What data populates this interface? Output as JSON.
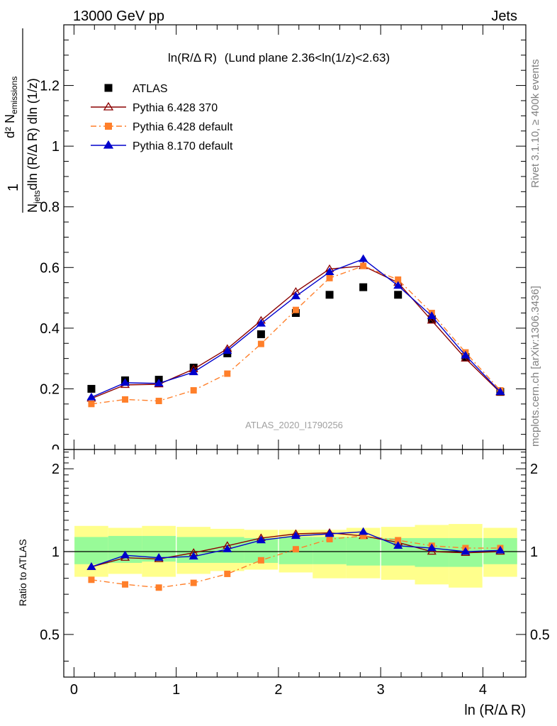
{
  "header": {
    "left": "13000 GeV pp",
    "right": "Jets",
    "side_rivet": "Rivet 3.1.10, ≥ 400k events",
    "side_mcplots": "mcplots.cern.ch [arXiv:1306.3436]",
    "watermark": "ATLAS_2020_I1790256"
  },
  "chart_data": {
    "type": "line",
    "title_main": "ln(R/Δ R)",
    "title_rest": "(Lund plane 2.36<ln(1/z)<2.63)",
    "ylabel_main": "1/N_jets dln (R/Δ R) dln (1/z) d² N_emissions",
    "ylabel_ratio": "Ratio to ATLAS",
    "xlabel": "ln (R/Δ R)",
    "x": [
      0.17,
      0.5,
      0.83,
      1.17,
      1.5,
      1.83,
      2.17,
      2.5,
      2.83,
      3.17,
      3.5,
      3.83,
      4.17
    ],
    "xlim": [
      -0.1,
      4.42
    ],
    "ylim_main": [
      0,
      1.4
    ],
    "ylim_ratio": [
      0.35,
      2.35
    ],
    "xticks": [
      "0",
      "1",
      "2",
      "3",
      "4"
    ],
    "yticks_main": [
      "0.2",
      "0.4",
      "0.6",
      "0.8",
      "1",
      "1.2"
    ],
    "yticks_main_cut": "0",
    "yticks_ratio": [
      "0.5",
      "1",
      "2"
    ],
    "legend_position": "top-left",
    "series": [
      {
        "name": "ATLAS",
        "color": "#000000",
        "marker": "square",
        "line": "none",
        "values": [
          0.2,
          0.228,
          0.23,
          0.27,
          0.317,
          0.38,
          0.45,
          0.51,
          0.535,
          0.51,
          0.43,
          0.305,
          0.19
        ]
      },
      {
        "name": "Pythia 6.428 370",
        "color": "#8b0000",
        "marker": "open-triangle",
        "line": "solid",
        "values": [
          0.168,
          0.213,
          0.215,
          0.265,
          0.332,
          0.425,
          0.52,
          0.595,
          0.605,
          0.55,
          0.425,
          0.3,
          0.188
        ],
        "ratio": [
          0.88,
          0.95,
          0.94,
          0.99,
          1.05,
          1.12,
          1.16,
          1.17,
          1.14,
          1.08,
          1.0,
          0.99,
          1.0
        ]
      },
      {
        "name": "Pythia 6.428 default",
        "color": "#ff7f2a",
        "marker": "square",
        "line": "dashdot",
        "values": [
          0.15,
          0.165,
          0.16,
          0.195,
          0.25,
          0.348,
          0.46,
          0.565,
          0.605,
          0.56,
          0.45,
          0.32,
          0.195
        ],
        "ratio": [
          0.79,
          0.76,
          0.74,
          0.77,
          0.83,
          0.93,
          1.02,
          1.11,
          1.14,
          1.1,
          1.05,
          1.03,
          1.03
        ]
      },
      {
        "name": "Pythia 8.170 default",
        "color": "#0000cc",
        "marker": "filled-triangle",
        "line": "solid",
        "values": [
          0.172,
          0.22,
          0.218,
          0.255,
          0.325,
          0.415,
          0.505,
          0.585,
          0.628,
          0.54,
          0.44,
          0.31,
          0.19
        ],
        "ratio": [
          0.88,
          0.97,
          0.95,
          0.96,
          1.02,
          1.1,
          1.14,
          1.16,
          1.18,
          1.05,
          1.03,
          1.0,
          1.01
        ]
      }
    ],
    "band_stat": {
      "color": "#98fb98",
      "lo": [
        0.9,
        0.91,
        0.92,
        0.91,
        0.91,
        0.91,
        0.9,
        0.9,
        0.89,
        0.89,
        0.88,
        0.88,
        0.9
      ],
      "hi": [
        1.13,
        1.14,
        1.14,
        1.13,
        1.13,
        1.12,
        1.13,
        1.13,
        1.13,
        1.12,
        1.12,
        1.12,
        1.12
      ]
    },
    "band_total": {
      "color": "#ffff8c",
      "lo": [
        0.81,
        0.83,
        0.81,
        0.83,
        0.85,
        0.86,
        0.84,
        0.8,
        0.8,
        0.79,
        0.76,
        0.74,
        0.81
      ],
      "hi": [
        1.24,
        1.22,
        1.24,
        1.23,
        1.21,
        1.2,
        1.2,
        1.2,
        1.22,
        1.23,
        1.25,
        1.26,
        1.22
      ]
    }
  }
}
